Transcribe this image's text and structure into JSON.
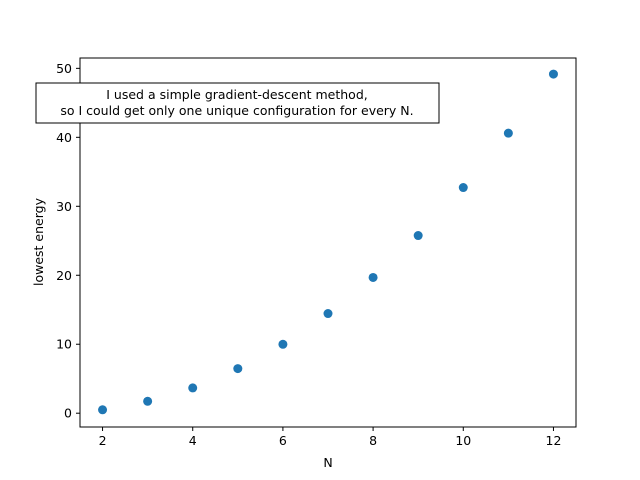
{
  "chart_data": {
    "type": "scatter",
    "title": "",
    "xlabel": "N",
    "ylabel": "lowest energy",
    "xlim": [
      1.5,
      12.5
    ],
    "ylim": [
      -2,
      51.5
    ],
    "xticks": [
      2,
      4,
      6,
      8,
      10,
      12
    ],
    "yticks": [
      0,
      10,
      20,
      30,
      40,
      50
    ],
    "xtick_labels": [
      "2",
      "4",
      "6",
      "8",
      "10",
      "12"
    ],
    "ytick_labels": [
      "0",
      "10",
      "20",
      "30",
      "40",
      "50"
    ],
    "grid": false,
    "series": [
      {
        "color": "#1f77b4",
        "x": [
          2,
          3,
          4,
          5,
          6,
          7,
          8,
          9,
          10,
          11,
          12
        ],
        "y": [
          0.5,
          1.73,
          3.67,
          6.47,
          9.99,
          14.45,
          19.68,
          25.76,
          32.72,
          40.6,
          49.17
        ]
      }
    ],
    "annotation": {
      "lines": [
        "I used a simple gradient-descent method,",
        "so I could get only one unique configuration for every N."
      ]
    }
  }
}
